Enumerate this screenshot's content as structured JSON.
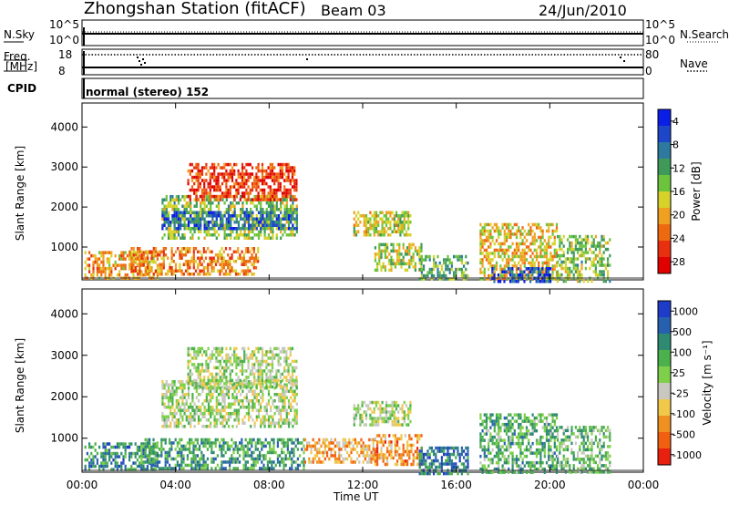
{
  "header": {
    "title": "Zhongshan Station (fitACF)",
    "beam": "Beam 03",
    "date": "24/Jun/2010"
  },
  "strip": {
    "nsky_label": "N.Sky",
    "nsky_ticks": [
      "10^5",
      "10^0"
    ],
    "nsearch_label": "N.Search",
    "nsearch_ticks": [
      "10^5",
      "10^0"
    ],
    "freq_label": "Freq.",
    "freq_unit": "[MHz]",
    "freq_ticks": [
      "18",
      "8"
    ],
    "nave_label": "Nave",
    "nave_ticks": [
      "80",
      "0"
    ],
    "cpid_label": "CPID",
    "cpid_text": "normal (stereo) 152"
  },
  "chart_data": [
    {
      "type": "heatmap",
      "name": "power",
      "ylabel": "Slant Range [km]",
      "xlabel": "",
      "x_ticks": [
        "00:00",
        "04:00",
        "08:00",
        "12:00",
        "16:00",
        "20:00",
        "00:00"
      ],
      "x_range_hours": [
        0,
        24
      ],
      "y_ticks": [
        1000,
        2000,
        3000,
        4000
      ],
      "ylim": [
        180,
        4600
      ],
      "colorbar": {
        "label": "Power [dB]",
        "ticks": [
          "4",
          "8",
          "12",
          "16",
          "20",
          "24",
          "28"
        ],
        "colors": [
          "#0a1ee6",
          "#1e46c8",
          "#2e7a9e",
          "#3f9a5a",
          "#6cc43c",
          "#d6d22a",
          "#f0a020",
          "#ee6a10",
          "#e83010",
          "#e00000"
        ]
      },
      "regions": [
        {
          "t0": 0.1,
          "t1": 3.2,
          "r0": 250,
          "r1": 900,
          "level": 0.35
        },
        {
          "t0": 3.4,
          "t1": 9.2,
          "r0": 1250,
          "r1": 2300,
          "level": 0.55
        },
        {
          "t0": 3.4,
          "t1": 9.2,
          "r0": 1500,
          "r1": 1900,
          "level": 0.8
        },
        {
          "t0": 4.5,
          "t1": 9.2,
          "r0": 2200,
          "r1": 3100,
          "level": 0.15
        },
        {
          "t0": 2.0,
          "t1": 7.5,
          "r0": 300,
          "r1": 1000,
          "level": 0.3
        },
        {
          "t0": 11.6,
          "t1": 14.0,
          "r0": 1300,
          "r1": 1900,
          "level": 0.45
        },
        {
          "t0": 12.5,
          "t1": 14.5,
          "r0": 400,
          "r1": 1100,
          "level": 0.5
        },
        {
          "t0": 14.4,
          "t1": 16.5,
          "r0": 180,
          "r1": 800,
          "level": 0.6
        },
        {
          "t0": 17.0,
          "t1": 20.3,
          "r0": 180,
          "r1": 1600,
          "level": 0.4
        },
        {
          "t0": 17.5,
          "t1": 20.0,
          "r0": 180,
          "r1": 500,
          "level": 0.85
        },
        {
          "t0": 20.3,
          "t1": 22.6,
          "r0": 180,
          "r1": 1300,
          "level": 0.55
        }
      ]
    },
    {
      "type": "heatmap",
      "name": "velocity",
      "ylabel": "Slant Range [km]",
      "xlabel": "Time UT",
      "x_ticks": [
        "00:00",
        "04:00",
        "08:00",
        "12:00",
        "16:00",
        "20:00",
        "00:00"
      ],
      "x_range_hours": [
        0,
        24
      ],
      "y_ticks": [
        1000,
        2000,
        3000,
        4000
      ],
      "ylim": [
        180,
        4600
      ],
      "colorbar": {
        "label": "Velocity [m s⁻¹]",
        "ticks": [
          "1000",
          "500",
          "100",
          "25",
          "-25",
          "-100",
          "-500",
          "-1000"
        ],
        "colors": [
          "#1e3cc8",
          "#2860b0",
          "#2e8a70",
          "#4cb04c",
          "#7ed04a",
          "#c8c8c0",
          "#f0c84a",
          "#f09020",
          "#f06010",
          "#e82010"
        ]
      },
      "regions": [
        {
          "t0": 0.1,
          "t1": 3.2,
          "r0": 250,
          "r1": 900,
          "level": 0.75
        },
        {
          "t0": 3.4,
          "t1": 9.2,
          "r0": 1250,
          "r1": 2400,
          "level": 0.5
        },
        {
          "t0": 4.5,
          "t1": 9.2,
          "r0": 2200,
          "r1": 3200,
          "level": 0.5
        },
        {
          "t0": 2.5,
          "t1": 9.5,
          "r0": 300,
          "r1": 1000,
          "level": 0.7
        },
        {
          "t0": 9.5,
          "t1": 12.5,
          "r0": 400,
          "r1": 1000,
          "level": 0.3
        },
        {
          "t0": 11.6,
          "t1": 14.0,
          "r0": 1300,
          "r1": 1900,
          "level": 0.5
        },
        {
          "t0": 12.5,
          "t1": 14.5,
          "r0": 400,
          "r1": 1100,
          "level": 0.25
        },
        {
          "t0": 14.4,
          "t1": 16.5,
          "r0": 180,
          "r1": 800,
          "level": 0.8
        },
        {
          "t0": 17.0,
          "t1": 20.3,
          "r0": 180,
          "r1": 1600,
          "level": 0.65
        },
        {
          "t0": 20.3,
          "t1": 22.6,
          "r0": 180,
          "r1": 1300,
          "level": 0.6
        }
      ]
    }
  ]
}
